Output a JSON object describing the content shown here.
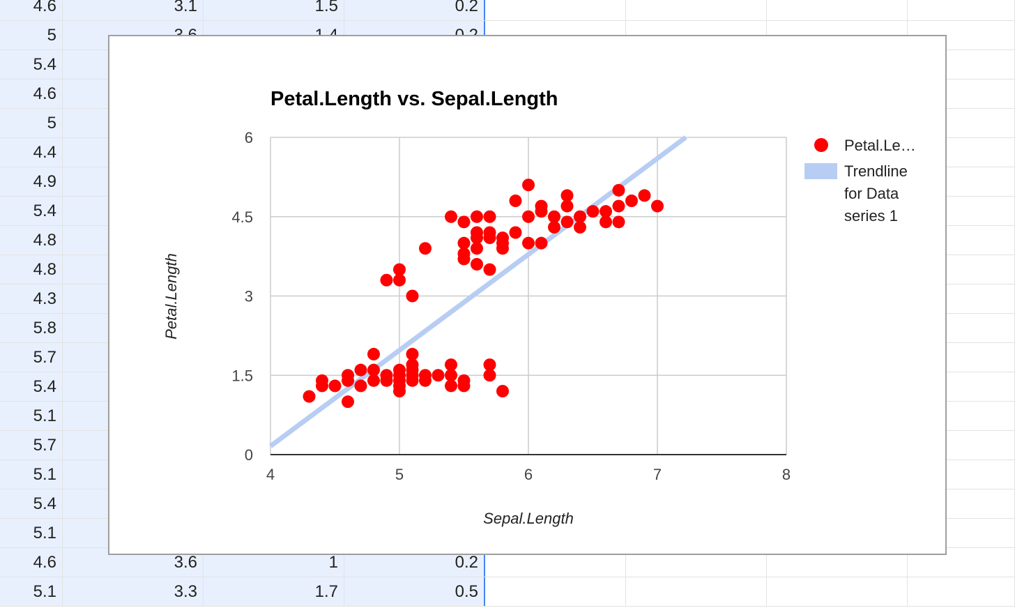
{
  "sheet": {
    "rows": [
      [
        "4.6",
        "3.1",
        "1.5",
        "0.2"
      ],
      [
        "5",
        "3.6",
        "1.4",
        "0.2"
      ],
      [
        "5.4",
        "",
        "",
        ""
      ],
      [
        "4.6",
        "",
        "",
        ""
      ],
      [
        "5",
        "",
        "",
        ""
      ],
      [
        "4.4",
        "",
        "",
        ""
      ],
      [
        "4.9",
        "",
        "",
        ""
      ],
      [
        "5.4",
        "",
        "",
        ""
      ],
      [
        "4.8",
        "",
        "",
        ""
      ],
      [
        "4.8",
        "",
        "",
        ""
      ],
      [
        "4.3",
        "",
        "",
        ""
      ],
      [
        "5.8",
        "",
        "",
        ""
      ],
      [
        "5.7",
        "",
        "",
        ""
      ],
      [
        "5.4",
        "",
        "",
        ""
      ],
      [
        "5.1",
        "",
        "",
        ""
      ],
      [
        "5.7",
        "",
        "",
        ""
      ],
      [
        "5.1",
        "",
        "",
        ""
      ],
      [
        "5.4",
        "",
        "",
        ""
      ],
      [
        "5.1",
        "",
        "",
        ""
      ],
      [
        "4.6",
        "3.6",
        "1",
        "0.2"
      ],
      [
        "5.1",
        "3.3",
        "1.7",
        "0.5"
      ]
    ]
  },
  "chart_data": {
    "type": "scatter",
    "title": "Petal.Length vs. Sepal.Length",
    "xlabel": "Sepal.Length",
    "ylabel": "Petal.Length",
    "xlim": [
      4,
      8
    ],
    "ylim": [
      0,
      6
    ],
    "xticks": [
      "4",
      "5",
      "6",
      "7",
      "8"
    ],
    "yticks": [
      "0",
      "1.5",
      "3",
      "4.5",
      "6"
    ],
    "grid": true,
    "legend_position": "right",
    "series": [
      {
        "name": "Petal.Le…",
        "color": "#ff0000",
        "points": [
          [
            4.3,
            1.1
          ],
          [
            4.4,
            1.3
          ],
          [
            4.4,
            1.4
          ],
          [
            4.5,
            1.3
          ],
          [
            4.6,
            1.0
          ],
          [
            4.6,
            1.4
          ],
          [
            4.6,
            1.5
          ],
          [
            4.7,
            1.3
          ],
          [
            4.7,
            1.6
          ],
          [
            4.8,
            1.4
          ],
          [
            4.8,
            1.6
          ],
          [
            4.8,
            1.9
          ],
          [
            4.9,
            1.4
          ],
          [
            4.9,
            1.5
          ],
          [
            4.9,
            3.3
          ],
          [
            5.0,
            1.2
          ],
          [
            5.0,
            1.3
          ],
          [
            5.0,
            1.4
          ],
          [
            5.0,
            1.5
          ],
          [
            5.0,
            1.6
          ],
          [
            5.0,
            3.3
          ],
          [
            5.0,
            3.5
          ],
          [
            5.1,
            1.4
          ],
          [
            5.1,
            1.5
          ],
          [
            5.1,
            1.6
          ],
          [
            5.1,
            1.7
          ],
          [
            5.1,
            1.9
          ],
          [
            5.1,
            3.0
          ],
          [
            5.2,
            1.4
          ],
          [
            5.2,
            1.5
          ],
          [
            5.2,
            3.9
          ],
          [
            5.3,
            1.5
          ],
          [
            5.4,
            1.3
          ],
          [
            5.4,
            1.5
          ],
          [
            5.4,
            1.7
          ],
          [
            5.4,
            4.5
          ],
          [
            5.5,
            1.3
          ],
          [
            5.5,
            1.4
          ],
          [
            5.5,
            3.7
          ],
          [
            5.5,
            3.8
          ],
          [
            5.5,
            4.0
          ],
          [
            5.5,
            4.4
          ],
          [
            5.6,
            3.6
          ],
          [
            5.6,
            3.9
          ],
          [
            5.6,
            4.1
          ],
          [
            5.6,
            4.2
          ],
          [
            5.6,
            4.5
          ],
          [
            5.7,
            1.5
          ],
          [
            5.7,
            1.7
          ],
          [
            5.7,
            3.5
          ],
          [
            5.7,
            4.1
          ],
          [
            5.7,
            4.2
          ],
          [
            5.7,
            4.5
          ],
          [
            5.8,
            1.2
          ],
          [
            5.8,
            3.9
          ],
          [
            5.8,
            4.0
          ],
          [
            5.8,
            4.1
          ],
          [
            5.9,
            4.2
          ],
          [
            5.9,
            4.8
          ],
          [
            6.0,
            4.0
          ],
          [
            6.0,
            4.5
          ],
          [
            6.0,
            5.1
          ],
          [
            6.1,
            4.0
          ],
          [
            6.1,
            4.6
          ],
          [
            6.1,
            4.7
          ],
          [
            6.2,
            4.3
          ],
          [
            6.2,
            4.5
          ],
          [
            6.3,
            4.4
          ],
          [
            6.3,
            4.7
          ],
          [
            6.3,
            4.9
          ],
          [
            6.4,
            4.3
          ],
          [
            6.4,
            4.5
          ],
          [
            6.5,
            4.6
          ],
          [
            6.6,
            4.4
          ],
          [
            6.6,
            4.6
          ],
          [
            6.7,
            4.4
          ],
          [
            6.7,
            4.7
          ],
          [
            6.7,
            5.0
          ],
          [
            6.8,
            4.8
          ],
          [
            6.9,
            4.9
          ],
          [
            7.0,
            4.7
          ]
        ]
      }
    ],
    "trendline": {
      "name": "Trendline for Data series 1",
      "label_lines": [
        "Trendline",
        "for Data",
        "series 1"
      ],
      "color": "#b7cdf3",
      "from": [
        4.0,
        0.16
      ],
      "to": [
        7.22,
        6.0
      ]
    }
  }
}
